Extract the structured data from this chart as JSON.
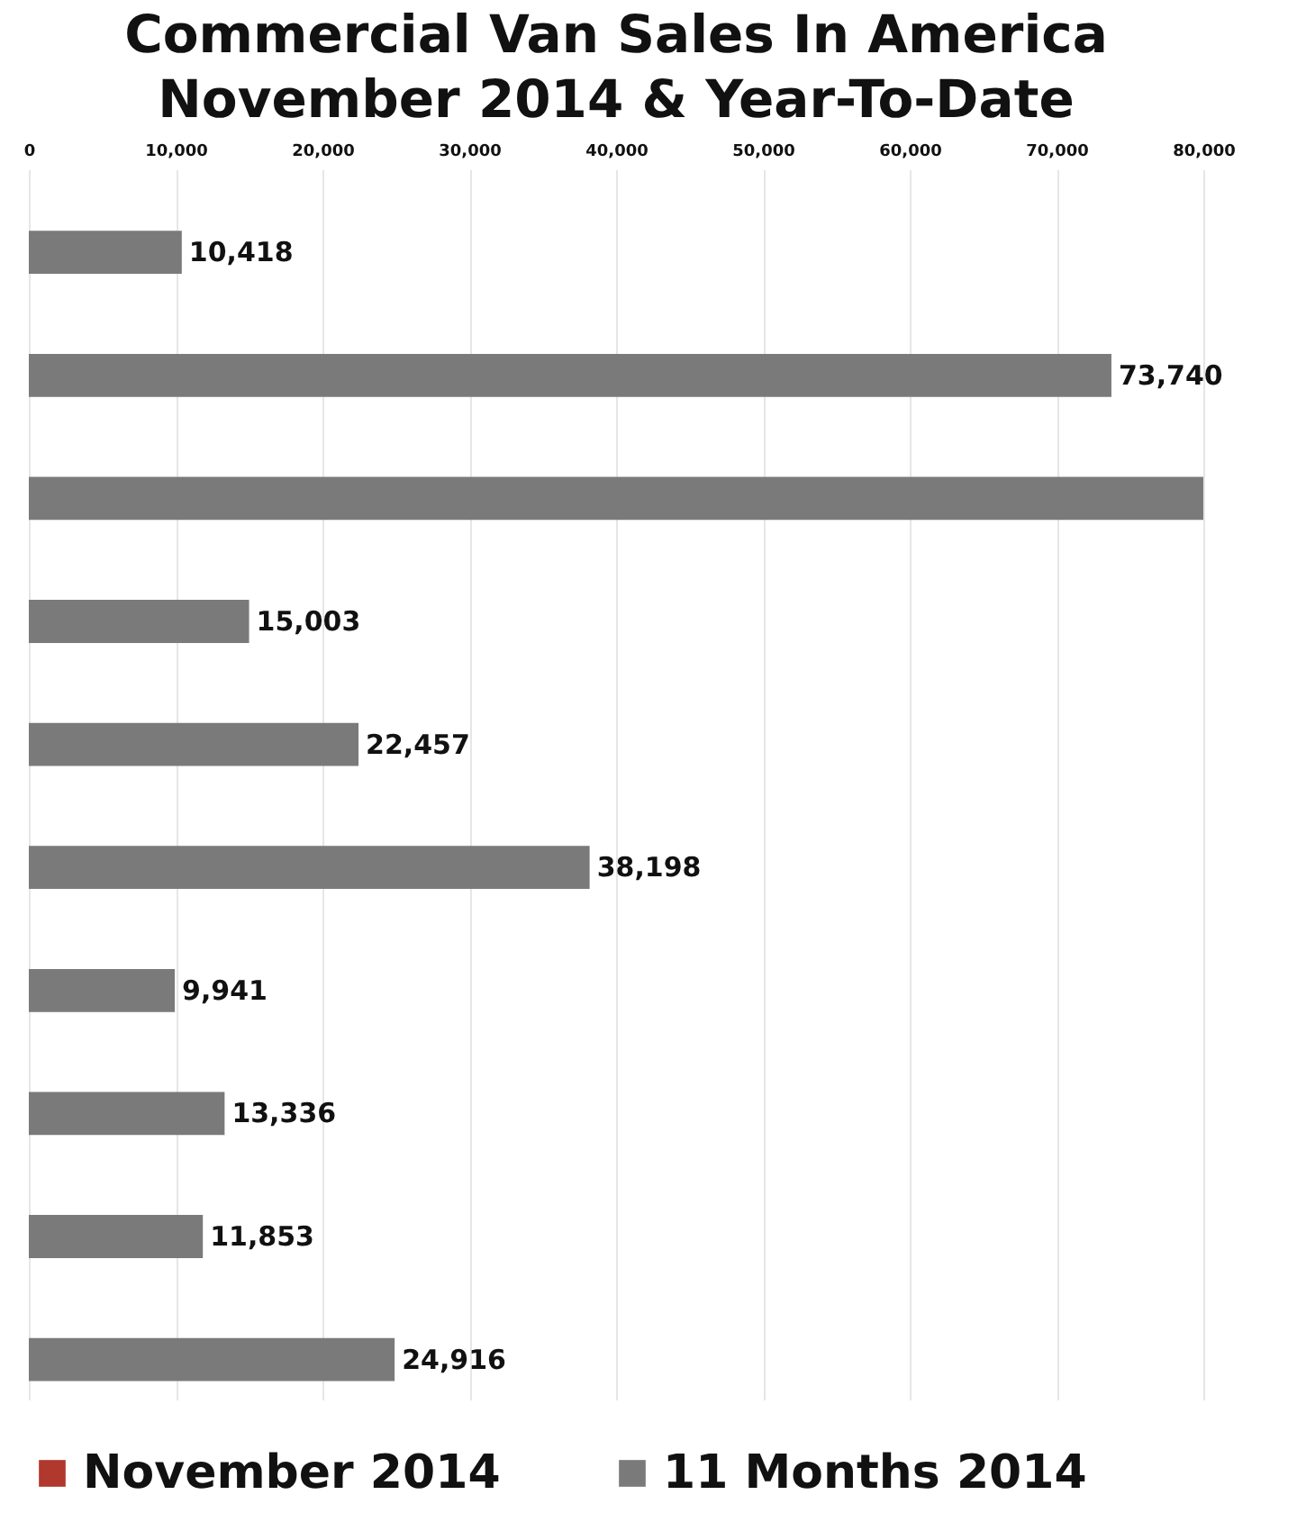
{
  "chart_data": {
    "type": "bar",
    "orientation": "horizontal",
    "title": "Commercial Van Sales In America\nNovember 2014 & Year-To-Date",
    "categories": [
      null,
      null,
      null,
      null,
      null,
      null,
      null,
      null,
      null,
      null
    ],
    "series": [
      {
        "name": "November 2014",
        "color": "#b0382c",
        "values": [
          null,
          null,
          null,
          null,
          null,
          null,
          null,
          null,
          null,
          null
        ]
      },
      {
        "name": "11 Months 2014",
        "color": "#7a7a7a",
        "values": [
          10418,
          73740,
          80000,
          15003,
          22457,
          38198,
          9941,
          13336,
          11853,
          24916
        ],
        "value_labels": [
          "10,418",
          "73,740",
          null,
          "15,003",
          "22,457",
          "38,198",
          "9,941",
          "13,336",
          "11,853",
          "24,916"
        ]
      }
    ],
    "xlim": [
      0,
      80000
    ],
    "xticks": [
      0,
      {
        "value": 10000,
        "label": "10,000"
      },
      {
        "value": 20000,
        "label": "20,000"
      },
      {
        "value": 30000,
        "label": "30,000"
      },
      {
        "value": 40000,
        "label": "40,000"
      },
      {
        "value": 50000,
        "label": "50,000"
      },
      {
        "value": 60000,
        "label": "60,000"
      },
      {
        "value": 70000,
        "label": "70,000"
      },
      {
        "value": 80000,
        "label": "80,000"
      }
    ],
    "grid": "x",
    "legend": "bottom"
  }
}
